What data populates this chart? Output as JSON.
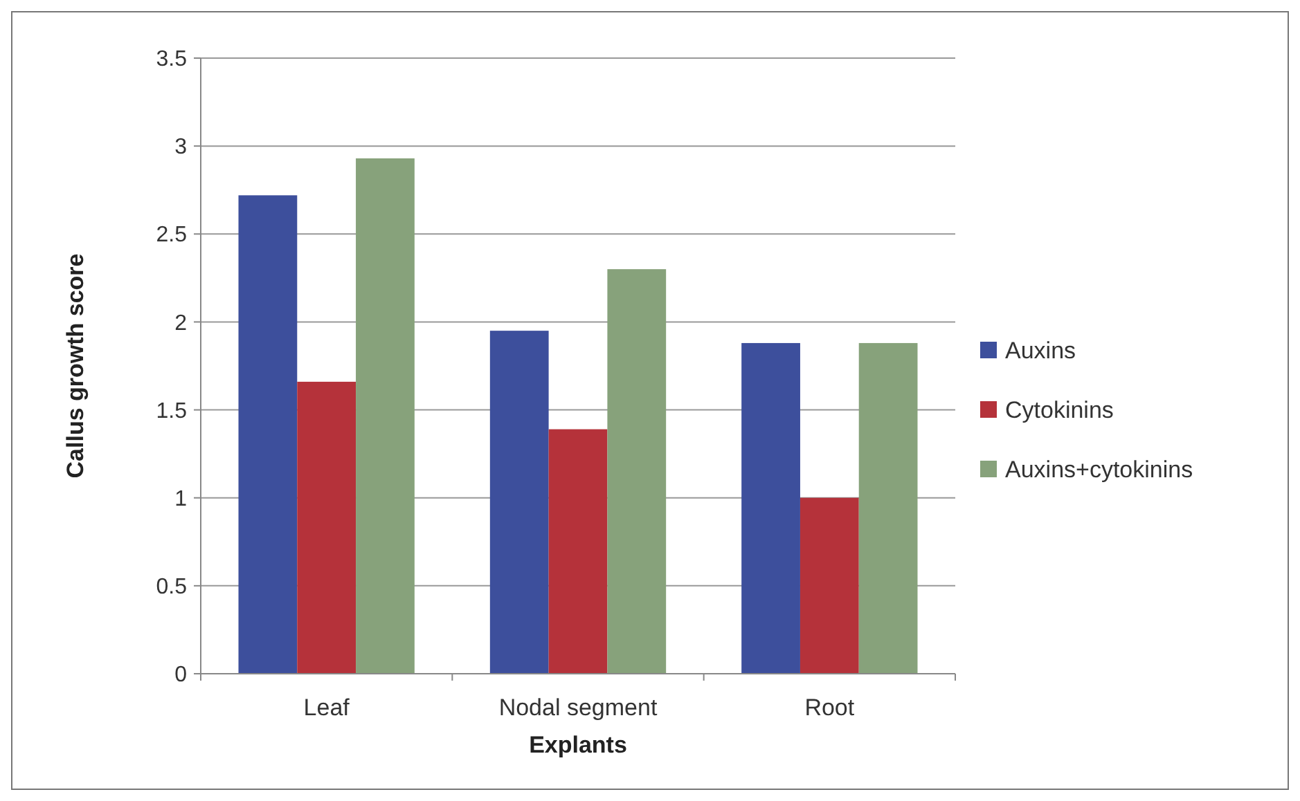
{
  "chart_data": {
    "type": "bar",
    "xlabel": "Explants",
    "ylabel": "Callus growth score",
    "categories": [
      "Leaf",
      "Nodal segment",
      "Root"
    ],
    "series": [
      {
        "name": "Auxins",
        "color": "#3d4f9c",
        "values": [
          2.72,
          1.95,
          1.88
        ]
      },
      {
        "name": "Cytokinins",
        "color": "#b5323a",
        "values": [
          1.66,
          1.39,
          1.0
        ]
      },
      {
        "name": "Auxins+cytokinins",
        "color": "#87a27b",
        "values": [
          2.93,
          2.3,
          1.88
        ]
      }
    ],
    "ylim": [
      0,
      3.5
    ],
    "yticks": [
      0,
      {
        "value": 0.5,
        "label": "0.5"
      },
      1,
      {
        "value": 1.5,
        "label": "1.5"
      },
      2,
      {
        "value": 2.5,
        "label": "2.5"
      },
      3,
      {
        "value": 3.5,
        "label": "3.5"
      }
    ],
    "grid": "y",
    "legend": "right"
  }
}
